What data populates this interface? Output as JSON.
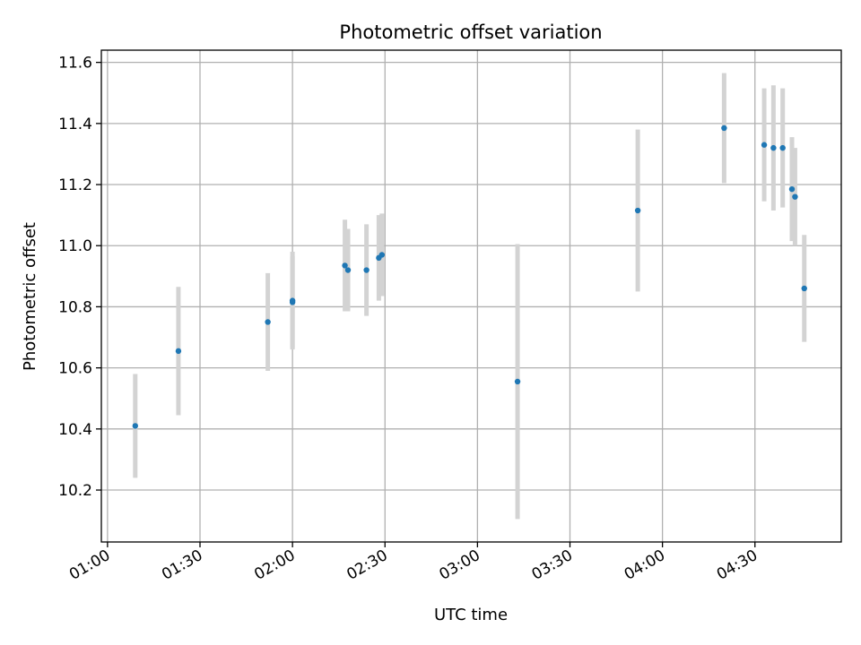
{
  "chart_data": {
    "type": "scatter",
    "title": "Photometric offset variation",
    "xlabel": "UTC time",
    "ylabel": "Photometric offset",
    "x_tick_labels": [
      "01:00",
      "01:30",
      "02:00",
      "02:30",
      "03:00",
      "03:30",
      "04:00",
      "04:30"
    ],
    "x_tick_times": [
      "01:00",
      "01:30",
      "02:00",
      "02:30",
      "03:00",
      "03:30",
      "04:00",
      "04:30"
    ],
    "xlim": [
      "00:58",
      "04:58"
    ],
    "y_tick_labels": [
      "10.2",
      "10.4",
      "10.6",
      "10.8",
      "11.0",
      "11.2",
      "11.4",
      "11.6"
    ],
    "y_tick_values": [
      10.2,
      10.4,
      10.6,
      10.8,
      11.0,
      11.2,
      11.4,
      11.6
    ],
    "ylim": [
      10.03,
      11.64
    ],
    "grid": true,
    "points": [
      {
        "x": "01:09",
        "y": 10.41,
        "err": 0.17
      },
      {
        "x": "01:23",
        "y": 10.655,
        "err": 0.21
      },
      {
        "x": "01:52",
        "y": 10.75,
        "err": 0.16
      },
      {
        "x": "02:00",
        "y": 10.815,
        "err": 0.15
      },
      {
        "x": "02:00",
        "y": 10.82,
        "err": 0.16
      },
      {
        "x": "02:17",
        "y": 10.935,
        "err": 0.15
      },
      {
        "x": "02:18",
        "y": 10.92,
        "err": 0.135
      },
      {
        "x": "02:24",
        "y": 10.92,
        "err": 0.15
      },
      {
        "x": "02:28",
        "y": 10.96,
        "err": 0.14
      },
      {
        "x": "02:29",
        "y": 10.97,
        "err": 0.135
      },
      {
        "x": "03:13",
        "y": 10.555,
        "err": 0.45
      },
      {
        "x": "03:52",
        "y": 11.115,
        "err": 0.265
      },
      {
        "x": "04:20",
        "y": 11.385,
        "err": 0.18
      },
      {
        "x": "04:33",
        "y": 11.33,
        "err": 0.185
      },
      {
        "x": "04:36",
        "y": 11.32,
        "err": 0.205
      },
      {
        "x": "04:39",
        "y": 11.32,
        "err": 0.195
      },
      {
        "x": "04:42",
        "y": 11.185,
        "err": 0.17
      },
      {
        "x": "04:43",
        "y": 11.16,
        "err": 0.16
      },
      {
        "x": "04:46",
        "y": 10.86,
        "err": 0.175
      }
    ],
    "colors": {
      "point": "#1f77b4",
      "errorbar": "#d3d3d3",
      "grid": "#b0b0b0",
      "axes": "#000000"
    }
  }
}
